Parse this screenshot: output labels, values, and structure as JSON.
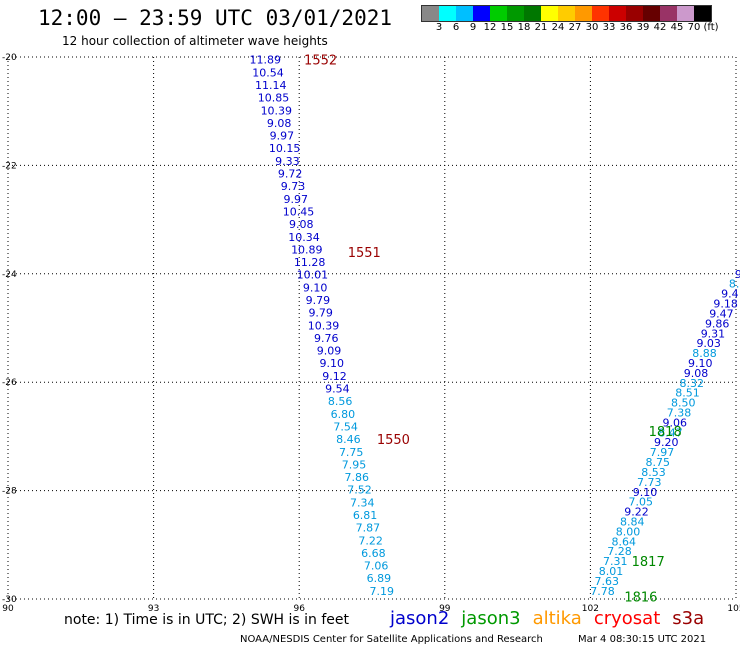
{
  "title": "12:00 – 23:59 UTC 03/01/2021",
  "subtitle": "12 hour collection of altimeter wave heights",
  "colorbar": {
    "colors": [
      "#888888",
      "#00ffff",
      "#00bfff",
      "#0000ff",
      "#00cc00",
      "#009900",
      "#007700",
      "#ffff00",
      "#ffcc00",
      "#ff9900",
      "#ff3300",
      "#cc0000",
      "#990000",
      "#660000",
      "#993366",
      "#cc99cc",
      "#000000"
    ],
    "labels": [
      "3",
      "6",
      "9",
      "12",
      "15",
      "18",
      "21",
      "24",
      "27",
      "30",
      "33",
      "36",
      "39",
      "42",
      "45",
      "70",
      "(ft)"
    ]
  },
  "chart_data": {
    "type": "scatter",
    "xlim": [
      90,
      105
    ],
    "ylim": [
      -30,
      -20
    ],
    "x_ticks": [
      "90",
      "93",
      "96",
      "99",
      "102",
      "105"
    ],
    "y_ticks": [
      "-20",
      "-22",
      "-24",
      "-26",
      "-28",
      "-30"
    ],
    "grid": true,
    "series": [
      {
        "name": "jason2",
        "color_dark": "#0000cc",
        "color_light": "#0099dd",
        "values": [
          "11.89",
          "10.54",
          "11.14",
          "10.85",
          "10.39",
          "9.08",
          "9.97",
          "10.15",
          "9.33",
          "9.72",
          "9.73",
          "9.97",
          "10.45",
          "9.08",
          "10.34",
          "10.89",
          "11.28",
          "10.01",
          "9.10",
          "9.79",
          "9.79",
          "10.39",
          "9.76",
          "9.09",
          "9.10",
          "9.12",
          "9.54",
          "8.56",
          "6.80",
          "7.54",
          "8.46",
          "7.75",
          "7.95",
          "7.86",
          "7.52",
          "7.34",
          "6.81",
          "7.87",
          "7.22",
          "6.68",
          "7.06",
          "6.89",
          "7.19"
        ],
        "start": [
          95.3,
          -20.05
        ],
        "end": [
          97.7,
          -29.85
        ]
      },
      {
        "name": "jason2",
        "color_dark": "#0000cc",
        "color_light": "#0099dd",
        "values": [
          "7.78",
          "7.63",
          "8.01",
          "7.31",
          "7.28",
          "8.64",
          "8.00",
          "8.84",
          "9.22",
          "7.05",
          "9.10",
          "7.73",
          "8.53",
          "8.75",
          "7.97",
          "9.20",
          "8.47",
          "9.06",
          "7.38",
          "8.50",
          "8.51",
          "8.32",
          "9.08",
          "9.10",
          "8.88",
          "9.03",
          "9.31",
          "9.86",
          "9.47",
          "9.18",
          "9.4",
          "8.",
          "9"
        ],
        "start": [
          102.25,
          -29.85
        ],
        "end": [
          105.05,
          -24.0
        ]
      }
    ],
    "annotations": [
      {
        "text": "1552",
        "x": 96.1,
        "y": -20.05,
        "color": "#990000"
      },
      {
        "text": "1551",
        "x": 97.0,
        "y": -23.6,
        "color": "#990000"
      },
      {
        "text": "1550",
        "x": 97.6,
        "y": -27.05,
        "color": "#990000"
      },
      {
        "text": "1818",
        "x": 103.2,
        "y": -26.9,
        "color": "#008800"
      },
      {
        "text": "1817",
        "x": 102.85,
        "y": -29.3,
        "color": "#008800"
      },
      {
        "text": "1816",
        "x": 102.7,
        "y": -29.95,
        "color": "#008800"
      }
    ]
  },
  "note": "note:  1) Time is in UTC;  2) SWH is in feet",
  "legend": [
    {
      "label": "jason2",
      "color": "#0000cc"
    },
    {
      "label": "jason3",
      "color": "#009900"
    },
    {
      "label": "altika",
      "color": "#ff9900"
    },
    {
      "label": "cryosat",
      "color": "#ff0000"
    },
    {
      "label": "s3a",
      "color": "#990000"
    }
  ],
  "credit": "NOAA/NESDIS Center for Satellite Applications and Research",
  "timestamp": "Mar  4 08:30:15 UTC 2021"
}
